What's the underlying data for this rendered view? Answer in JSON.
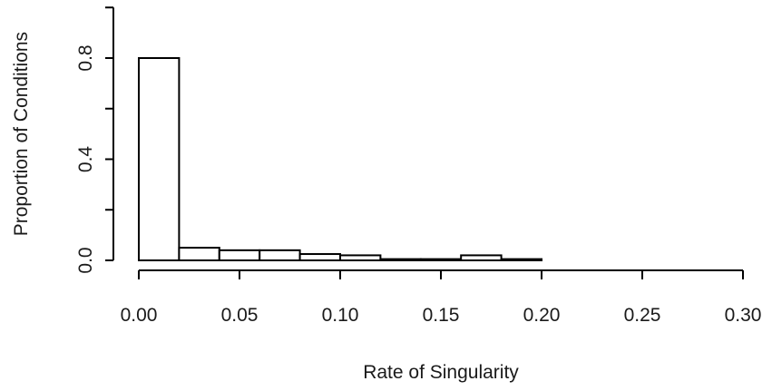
{
  "chart_data": {
    "type": "bar",
    "subtype": "histogram",
    "title": "",
    "xlabel": "Rate of Singularity",
    "ylabel": "Proportion of Conditions",
    "xlim": [
      0,
      0.3
    ],
    "ylim": [
      0,
      1.0
    ],
    "x_ticks": [
      "0.00",
      "0.05",
      "0.10",
      "0.15",
      "0.20",
      "0.25",
      "0.30"
    ],
    "y_ticks": [
      "0.0",
      "0.4",
      "0.8"
    ],
    "grid": false,
    "legend": "none",
    "bins": [
      {
        "x0": 0.0,
        "x1": 0.02,
        "value": 0.8
      },
      {
        "x0": 0.02,
        "x1": 0.04,
        "value": 0.05
      },
      {
        "x0": 0.04,
        "x1": 0.06,
        "value": 0.04
      },
      {
        "x0": 0.06,
        "x1": 0.08,
        "value": 0.04
      },
      {
        "x0": 0.08,
        "x1": 0.1,
        "value": 0.025
      },
      {
        "x0": 0.1,
        "x1": 0.12,
        "value": 0.02
      },
      {
        "x0": 0.12,
        "x1": 0.14,
        "value": 0.005
      },
      {
        "x0": 0.14,
        "x1": 0.16,
        "value": 0.005
      },
      {
        "x0": 0.16,
        "x1": 0.18,
        "value": 0.02
      },
      {
        "x0": 0.18,
        "x1": 0.2,
        "value": 0.005
      }
    ],
    "colors": {
      "bar_fill": "#ffffff",
      "bar_stroke": "#000000",
      "axis": "#000000",
      "text": "#1a1a1a"
    }
  }
}
